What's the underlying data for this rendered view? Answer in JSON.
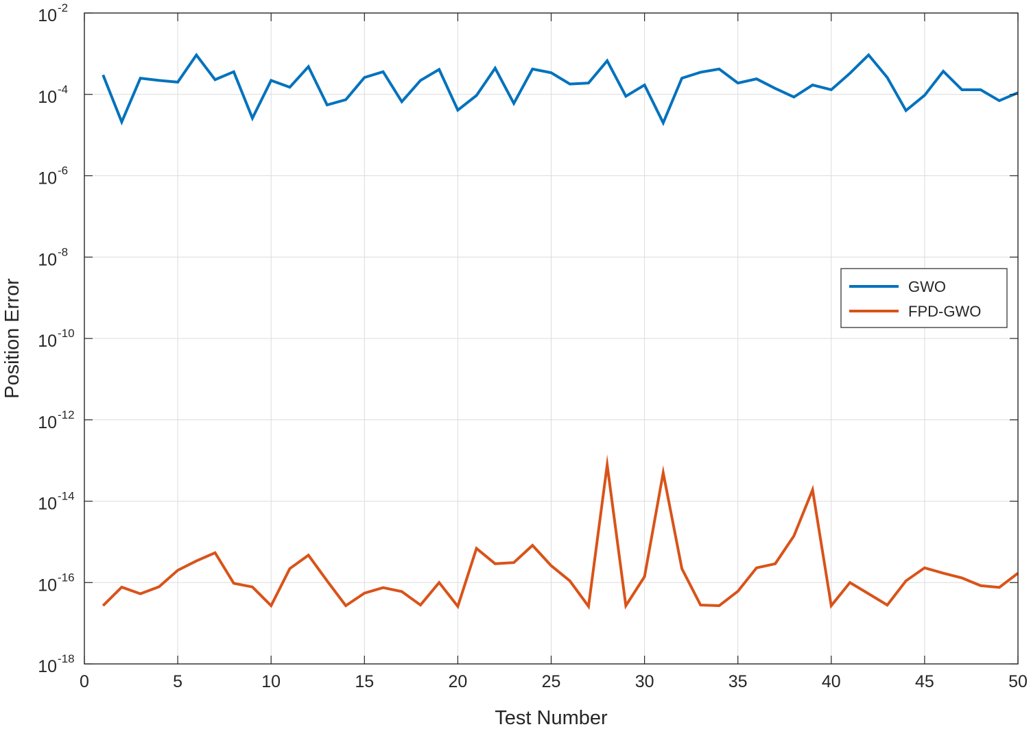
{
  "chart_data": {
    "type": "line",
    "xlabel": "Test Number",
    "ylabel": "Position Error",
    "xlim": [
      0,
      50
    ],
    "ylim": [
      1e-18,
      0.01
    ],
    "yscale": "log",
    "grid": true,
    "legend_position": "right",
    "x_ticks": [
      0,
      5,
      10,
      15,
      20,
      25,
      30,
      35,
      40,
      45,
      50
    ],
    "y_ticks": [
      {
        "base": "10",
        "exp": "-18",
        "value": -18
      },
      {
        "base": "10",
        "exp": "-16",
        "value": -16
      },
      {
        "base": "10",
        "exp": "-14",
        "value": -14
      },
      {
        "base": "10",
        "exp": "-12",
        "value": -12
      },
      {
        "base": "10",
        "exp": "-10",
        "value": -10
      },
      {
        "base": "10",
        "exp": "-8",
        "value": -8
      },
      {
        "base": "10",
        "exp": "-6",
        "value": -6
      },
      {
        "base": "10",
        "exp": "-4",
        "value": -4
      },
      {
        "base": "10",
        "exp": "-2",
        "value": -2
      }
    ],
    "x": [
      1,
      2,
      3,
      4,
      5,
      6,
      7,
      8,
      9,
      10,
      11,
      12,
      13,
      14,
      15,
      16,
      17,
      18,
      19,
      20,
      21,
      22,
      23,
      24,
      25,
      26,
      27,
      28,
      29,
      30,
      31,
      32,
      33,
      34,
      35,
      36,
      37,
      38,
      39,
      40,
      41,
      42,
      43,
      44,
      45,
      46,
      47,
      48,
      49,
      50
    ],
    "series": [
      {
        "name": "GWO",
        "color": "#0072BD",
        "values": [
          0.0003,
          2.1e-05,
          0.00025,
          0.00022,
          0.0002,
          0.00093,
          0.00023,
          0.00036,
          2.6e-05,
          0.00022,
          0.00015,
          0.00048,
          5.5e-05,
          7.4e-05,
          0.00026,
          0.00036,
          6.6e-05,
          0.00022,
          0.00041,
          4.1e-05,
          9.4e-05,
          0.00044,
          6e-05,
          0.00042,
          0.00034,
          0.00018,
          0.00019,
          0.00067,
          9e-05,
          0.00017,
          2e-05,
          0.00025,
          0.00035,
          0.00042,
          0.00019,
          0.00024,
          0.00014,
          8.6e-05,
          0.00017,
          0.00013,
          0.00033,
          0.00093,
          0.00026,
          4e-05,
          9.5e-05,
          0.00037,
          0.00013,
          0.00013,
          7e-05,
          0.00011
        ]
      },
      {
        "name": "FPD-GWO",
        "color": "#D95319",
        "values": [
          2.7e-17,
          7.7e-17,
          5.3e-17,
          7.9e-17,
          2e-16,
          3.4e-16,
          5.4e-16,
          9.6e-17,
          7.8e-17,
          2.7e-17,
          2.2e-16,
          4.7e-16,
          1.1e-16,
          2.7e-17,
          5.5e-17,
          7.5e-17,
          6e-17,
          2.8e-17,
          1e-16,
          2.6e-17,
          6.9e-16,
          2.9e-16,
          3.1e-16,
          8.2e-16,
          2.6e-16,
          1.1e-16,
          2.6e-17,
          7.8e-14,
          2.7e-17,
          1.4e-16,
          5e-14,
          2.2e-16,
          2.8e-17,
          2.7e-17,
          6.1e-17,
          2.3e-16,
          2.9e-16,
          1.4e-15,
          1.9e-14,
          2.7e-17,
          1e-16,
          5.3e-17,
          2.8e-17,
          1.1e-16,
          2.3e-16,
          1.7e-16,
          1.3e-16,
          8.4e-17,
          7.6e-17,
          1.7e-16
        ]
      }
    ]
  }
}
